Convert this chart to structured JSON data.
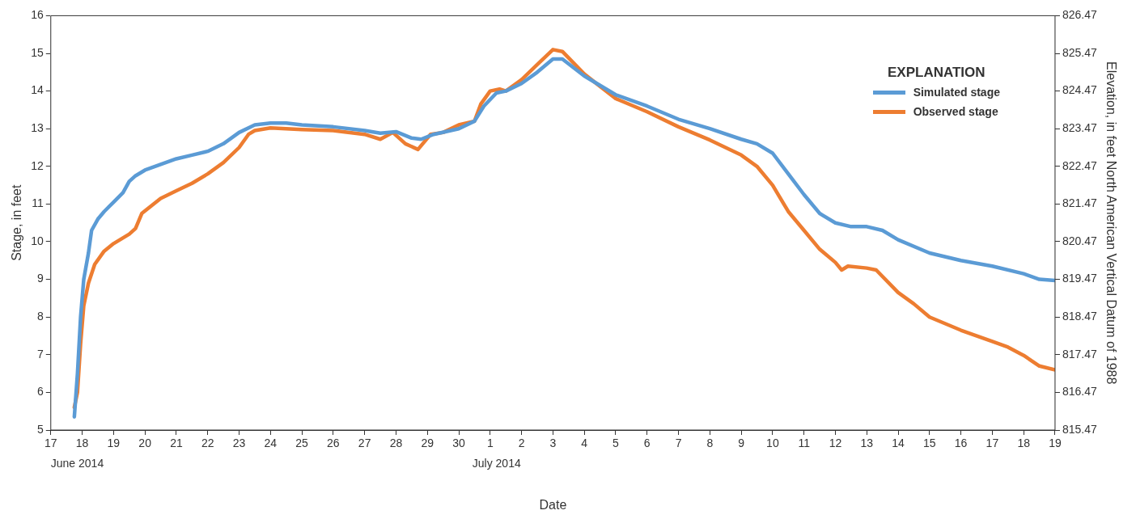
{
  "chart_data": {
    "type": "line",
    "xlabel": "Date",
    "ylabel": "Stage, in feet",
    "y2label": "Elevation, in feet North American Vertical Datum of 1988",
    "legend_title": "EXPLANATION",
    "legend": "top right",
    "grid": false,
    "marker": "none",
    "line_style": "solid",
    "xlim": [
      "2014-06-17",
      "2014-07-19"
    ],
    "xticks": [
      {
        "value": "2014-06-17",
        "label": "17"
      },
      {
        "value": "2014-06-18",
        "label": "18"
      },
      {
        "value": "2014-06-19",
        "label": "19"
      },
      {
        "value": "2014-06-20",
        "label": "20"
      },
      {
        "value": "2014-06-21",
        "label": "21"
      },
      {
        "value": "2014-06-22",
        "label": "22"
      },
      {
        "value": "2014-06-23",
        "label": "23"
      },
      {
        "value": "2014-06-24",
        "label": "24"
      },
      {
        "value": "2014-06-25",
        "label": "25"
      },
      {
        "value": "2014-06-26",
        "label": "26"
      },
      {
        "value": "2014-06-27",
        "label": "27"
      },
      {
        "value": "2014-06-28",
        "label": "28"
      },
      {
        "value": "2014-06-29",
        "label": "29"
      },
      {
        "value": "2014-06-30",
        "label": "30"
      },
      {
        "value": "2014-07-01",
        "label": "1"
      },
      {
        "value": "2014-07-02",
        "label": "2"
      },
      {
        "value": "2014-07-03",
        "label": "3"
      },
      {
        "value": "2014-07-04",
        "label": "4"
      },
      {
        "value": "2014-07-05",
        "label": "5"
      },
      {
        "value": "2014-07-06",
        "label": "6"
      },
      {
        "value": "2014-07-07",
        "label": "7"
      },
      {
        "value": "2014-07-08",
        "label": "8"
      },
      {
        "value": "2014-07-09",
        "label": "9"
      },
      {
        "value": "2014-07-10",
        "label": "10"
      },
      {
        "value": "2014-07-11",
        "label": "11"
      },
      {
        "value": "2014-07-12",
        "label": "12"
      },
      {
        "value": "2014-07-13",
        "label": "13"
      },
      {
        "value": "2014-07-14",
        "label": "14"
      },
      {
        "value": "2014-07-15",
        "label": "15"
      },
      {
        "value": "2014-07-16",
        "label": "16"
      },
      {
        "value": "2014-07-17",
        "label": "17"
      },
      {
        "value": "2014-07-18",
        "label": "18"
      },
      {
        "value": "2014-07-19",
        "label": "19"
      }
    ],
    "ylim": [
      5,
      16
    ],
    "yticks": [
      5,
      6,
      7,
      8,
      9,
      10,
      11,
      12,
      13,
      14,
      15,
      16
    ],
    "y2lim": [
      815.47,
      826.47
    ],
    "y2ticks": [
      815.47,
      816.47,
      817.47,
      818.47,
      819.47,
      820.47,
      821.47,
      822.47,
      823.47,
      824.47,
      825.47,
      826.47
    ],
    "annotations": [
      "June 2014",
      "July 2014"
    ],
    "series": [
      {
        "name": "Simulated stage",
        "color": "#5b9bd5",
        "x": [
          "2014-06-17T18:00",
          "2014-06-17T20:24",
          "2014-06-17T22:48",
          "2014-06-18T01:12",
          "2014-06-18T04:48",
          "2014-06-18T07:12",
          "2014-06-18T12:00",
          "2014-06-18T16:48",
          "2014-06-19T00:00",
          "2014-06-19T07:12",
          "2014-06-19T12:00",
          "2014-06-19T16:48",
          "2014-06-20T00:00",
          "2014-06-20T12:00",
          "2014-06-21T00:00",
          "2014-06-21T12:00",
          "2014-06-22T00:00",
          "2014-06-22T12:00",
          "2014-06-23T00:00",
          "2014-06-23T12:00",
          "2014-06-24T00:00",
          "2014-06-24T12:00",
          "2014-06-25T00:00",
          "2014-06-26T00:00",
          "2014-06-27T00:00",
          "2014-06-27T12:00",
          "2014-06-28T00:00",
          "2014-06-28T12:00",
          "2014-06-28T19:12",
          "2014-06-29T04:48",
          "2014-06-30T00:00",
          "2014-06-30T12:00",
          "2014-06-30T19:12",
          "2014-07-01T04:48",
          "2014-07-01T12:00",
          "2014-07-02T00:00",
          "2014-07-02T12:00",
          "2014-07-03T00:00",
          "2014-07-03T07:12",
          "2014-07-04T00:00",
          "2014-07-05T00:00",
          "2014-07-06T00:00",
          "2014-07-07T00:00",
          "2014-07-08T00:00",
          "2014-07-09T00:00",
          "2014-07-09T12:00",
          "2014-07-10T00:00",
          "2014-07-10T12:00",
          "2014-07-11T00:00",
          "2014-07-11T12:00",
          "2014-07-12T00:00",
          "2014-07-12T12:00",
          "2014-07-13T00:00",
          "2014-07-13T12:00",
          "2014-07-14T00:00",
          "2014-07-15T00:00",
          "2014-07-16T00:00",
          "2014-07-17T00:00",
          "2014-07-18T00:00",
          "2014-07-18T12:00",
          "2014-07-19T00:00"
        ],
        "values": [
          5.35,
          6.5,
          8.0,
          9.0,
          9.7,
          10.3,
          10.6,
          10.8,
          11.05,
          11.3,
          11.6,
          11.75,
          11.9,
          12.05,
          12.2,
          12.3,
          12.4,
          12.6,
          12.9,
          13.1,
          13.15,
          13.15,
          13.1,
          13.05,
          12.95,
          12.88,
          12.92,
          12.75,
          12.72,
          12.85,
          13.0,
          13.2,
          13.6,
          13.95,
          14.0,
          14.2,
          14.5,
          14.85,
          14.85,
          14.4,
          13.9,
          13.6,
          13.25,
          13.0,
          12.72,
          12.6,
          12.35,
          11.8,
          11.25,
          10.75,
          10.5,
          10.4,
          10.4,
          10.3,
          10.05,
          9.7,
          9.5,
          9.35,
          9.15,
          9.0,
          8.97
        ]
      },
      {
        "name": "Observed stage",
        "color": "#ed7d31",
        "x": [
          "2014-06-17T18:00",
          "2014-06-17T20:24",
          "2014-06-17T22:48",
          "2014-06-18T01:12",
          "2014-06-18T04:48",
          "2014-06-18T09:36",
          "2014-06-18T16:48",
          "2014-06-19T00:00",
          "2014-06-19T12:00",
          "2014-06-19T16:48",
          "2014-06-19T21:36",
          "2014-06-20T04:48",
          "2014-06-20T12:00",
          "2014-06-21T00:00",
          "2014-06-21T12:00",
          "2014-06-22T00:00",
          "2014-06-22T12:00",
          "2014-06-23T00:00",
          "2014-06-23T07:12",
          "2014-06-23T12:00",
          "2014-06-24T00:00",
          "2014-06-25T00:00",
          "2014-06-26T00:00",
          "2014-06-27T00:00",
          "2014-06-27T12:00",
          "2014-06-27T21:36",
          "2014-06-28T07:12",
          "2014-06-28T16:48",
          "2014-06-29T02:24",
          "2014-06-29T12:00",
          "2014-06-30T00:00",
          "2014-06-30T12:00",
          "2014-06-30T16:48",
          "2014-07-01T00:00",
          "2014-07-01T07:12",
          "2014-07-01T12:00",
          "2014-07-02T00:00",
          "2014-07-02T12:00",
          "2014-07-03T00:00",
          "2014-07-03T07:12",
          "2014-07-04T00:00",
          "2014-07-05T00:00",
          "2014-07-06T00:00",
          "2014-07-07T00:00",
          "2014-07-08T00:00",
          "2014-07-09T00:00",
          "2014-07-09T12:00",
          "2014-07-10T00:00",
          "2014-07-10T12:00",
          "2014-07-11T00:00",
          "2014-07-11T12:00",
          "2014-07-12T00:00",
          "2014-07-12T04:48",
          "2014-07-12T09:36",
          "2014-07-13T00:00",
          "2014-07-13T07:12",
          "2014-07-14T00:00",
          "2014-07-14T12:00",
          "2014-07-15T00:00",
          "2014-07-16T00:00",
          "2014-07-17T00:00",
          "2014-07-17T12:00",
          "2014-07-18T00:00",
          "2014-07-18T12:00",
          "2014-07-19T00:00"
        ],
        "values": [
          5.6,
          6.0,
          7.3,
          8.3,
          8.9,
          9.4,
          9.75,
          9.95,
          10.2,
          10.35,
          10.75,
          10.95,
          11.15,
          11.35,
          11.55,
          11.8,
          12.1,
          12.5,
          12.85,
          12.95,
          13.02,
          12.98,
          12.95,
          12.85,
          12.72,
          12.9,
          12.6,
          12.45,
          12.85,
          12.9,
          13.1,
          13.2,
          13.65,
          14.0,
          14.05,
          14.0,
          14.3,
          14.7,
          15.1,
          15.05,
          14.45,
          13.8,
          13.45,
          13.05,
          12.7,
          12.3,
          12.0,
          11.5,
          10.8,
          10.3,
          9.8,
          9.45,
          9.25,
          9.35,
          9.3,
          9.25,
          8.65,
          8.35,
          8.0,
          7.65,
          7.35,
          7.2,
          6.98,
          6.7,
          6.6
        ]
      }
    ]
  }
}
